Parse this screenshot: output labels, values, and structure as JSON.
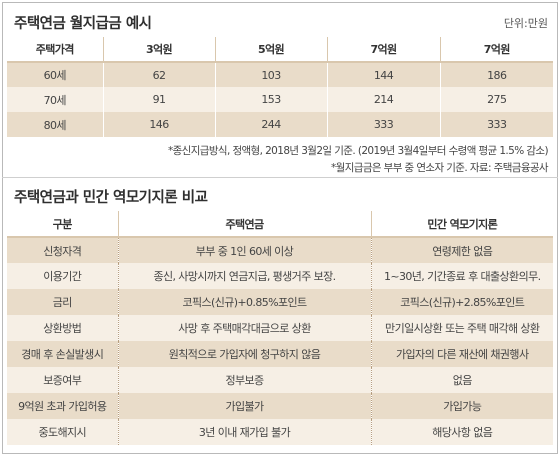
{
  "section1": {
    "title": "주택연금 월지급금 예시",
    "unit": "단위:만원",
    "headers": [
      "주택가격",
      "3억원",
      "5억원",
      "7억원",
      "7억원"
    ],
    "rows": [
      [
        "60세",
        "62",
        "103",
        "144",
        "186"
      ],
      [
        "70세",
        "91",
        "153",
        "214",
        "275"
      ],
      [
        "80세",
        "146",
        "244",
        "333",
        "333"
      ]
    ],
    "notes": [
      "*종신지급방식, 정액형, 2018년 3월2일 기준. (2019년 3월4일부터 수령액 평균 1.5% 감소)",
      "*월지급금은 부부 중 연소자 기준. 자료: 주택금융공사"
    ]
  },
  "section2": {
    "title": "주택연금과 민간 역모기지론 비교",
    "headers": [
      "구분",
      "주택연금",
      "민간 역모기지론"
    ],
    "rows": [
      [
        "신청자격",
        "부부 중 1인 60세 이상",
        "연령제한 없음"
      ],
      [
        "이용기간",
        "종신, 사망시까지 연금지급, 평생거주 보장.",
        "1~30년, 기간종료 후 대출상환의무."
      ],
      [
        "금리",
        "코픽스(신규)+0.85%포인트",
        "코픽스(신규)+2.85%포인트"
      ],
      [
        "상환방법",
        "사망 후 주택매각대금으로 상환",
        "만기일시상환 또는 주택 매각해 상환"
      ],
      [
        "경매 후 손실발생시",
        "원칙적으로 가입자에 청구하지 않음",
        "가입자의 다른 재산에 채권행사"
      ],
      [
        "보증여부",
        "정부보증",
        "없음"
      ],
      [
        "9억원 초과 가입허용",
        "가입불가",
        "가입가능"
      ],
      [
        "중도해지시",
        "3년 이내 재가입 불가",
        "해당사항 없음"
      ]
    ]
  }
}
